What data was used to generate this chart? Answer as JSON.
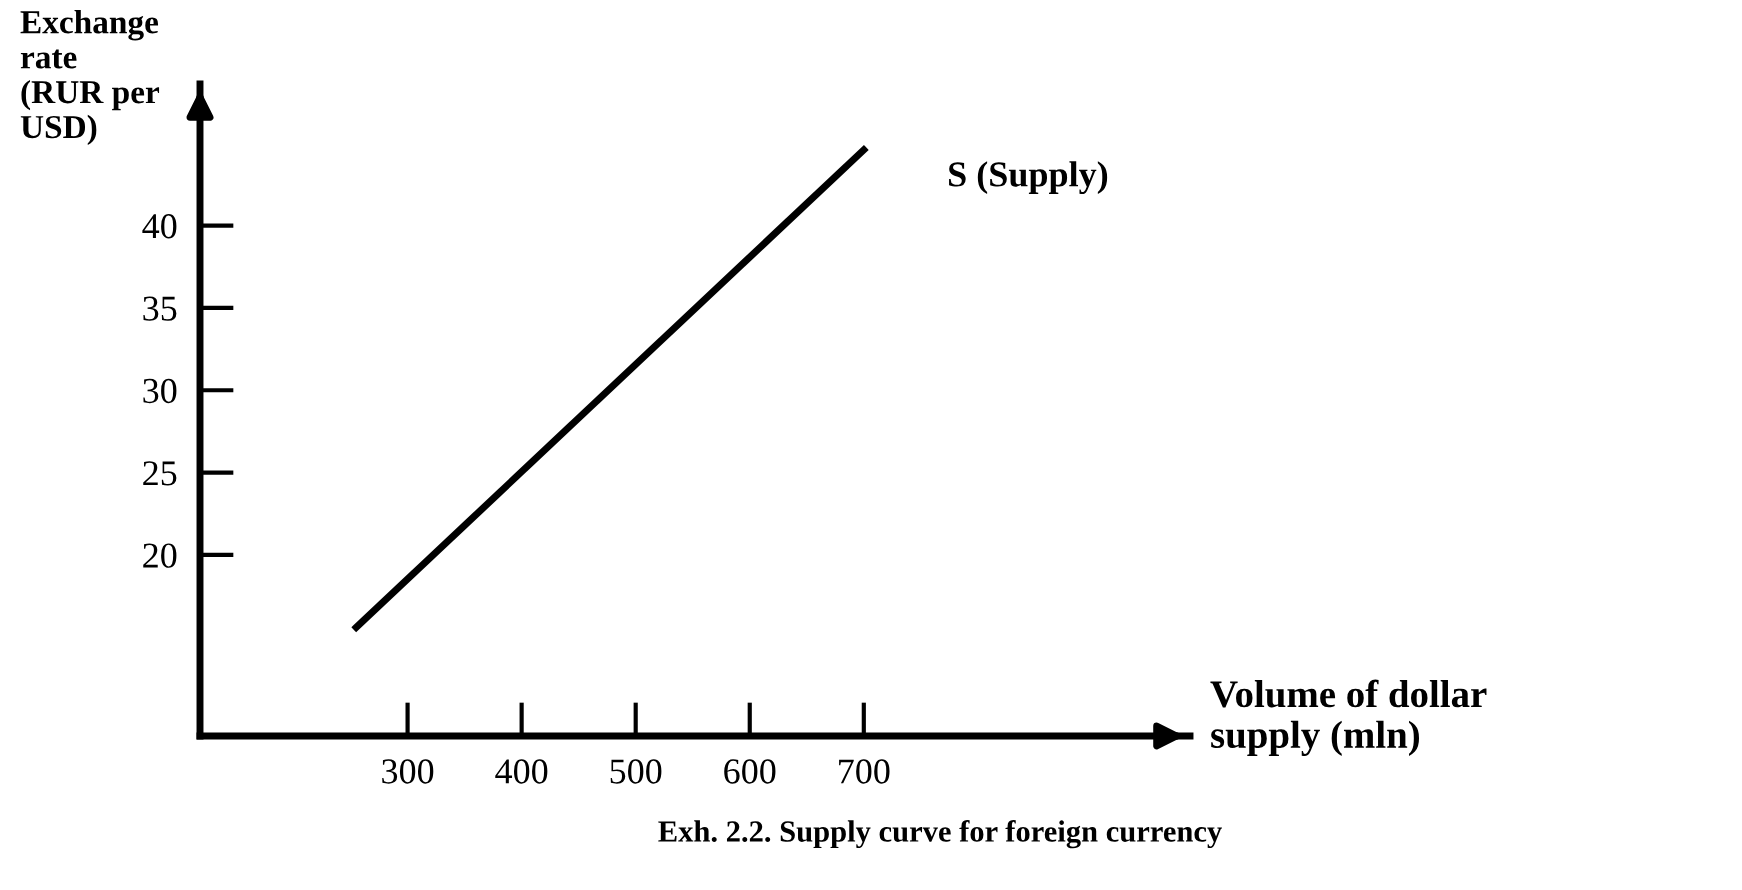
{
  "chart_data": {
    "type": "line",
    "xlabel": "Volume of dollar\nsupply (mln)",
    "ylabel": "Exchange\nrate\n(RUR per\nUSD)",
    "annotations": [
      "Exh. 2.2. Supply curve for foreign currency"
    ],
    "x": [
      255,
      700
    ],
    "series": [
      {
        "name": "S (Supply)",
        "color": "#000000",
        "values": [
          15.6,
          44.6
        ]
      }
    ],
    "xlim": [
      118,
      986
    ],
    "ylim": [
      9,
      48.6
    ],
    "xticks": [
      300,
      400,
      500,
      600,
      700
    ],
    "yticks": [
      20,
      25,
      30,
      35,
      40
    ],
    "grid": false,
    "legend": false,
    "marker": "none",
    "line_style": "solid"
  }
}
